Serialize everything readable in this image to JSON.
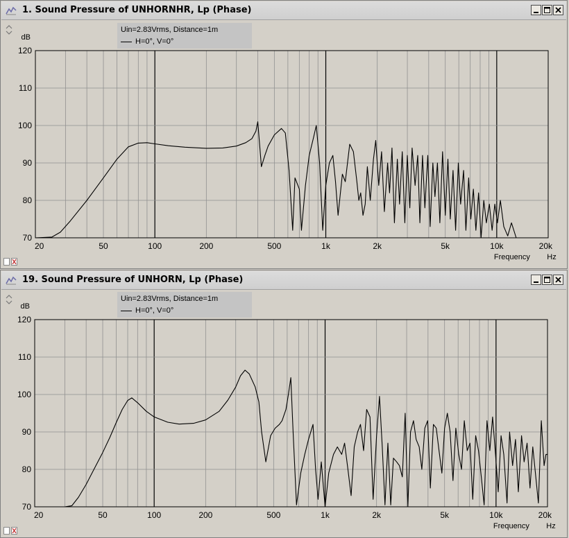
{
  "windows": [
    {
      "title": "1. Sound Pressure of UNHORNHR, Lp (Phase)",
      "legend": {
        "line1": "Uin=2.83Vrms, Distance=1m",
        "line2": "H=0°, V=0°"
      },
      "y_unit": "dB",
      "x_label": "Frequency",
      "x_unit": "Hz",
      "minimize_label": "_",
      "maximize_label": "□",
      "close_label": "✕"
    },
    {
      "title": "19. Sound Pressure of UNHORN, Lp (Phase)",
      "legend": {
        "line1": "Uin=2.83Vrms, Distance=1m",
        "line2": "H=0°, V=0°"
      },
      "y_unit": "dB",
      "x_label": "Frequency",
      "x_unit": "Hz",
      "minimize_label": "_",
      "maximize_label": "□",
      "close_label": "✕"
    }
  ],
  "chart_data": [
    {
      "type": "line",
      "title": "1. Sound Pressure of UNHORNHR, Lp (Phase)",
      "xlabel": "Frequency",
      "xunit": "Hz",
      "ylabel": "dB",
      "xscale": "log",
      "xlim": [
        20,
        20000
      ],
      "ylim": [
        70,
        120
      ],
      "y_ticks": [
        70,
        80,
        90,
        100,
        110,
        120
      ],
      "x_ticks": [
        "20",
        "50",
        "100",
        "200",
        "500",
        "1k",
        "2k",
        "5k",
        "10k",
        "20k"
      ],
      "grid": true,
      "series": [
        {
          "name": "H=0°, V=0°",
          "points": [
            [
              20,
              70
            ],
            [
              25,
              70.2
            ],
            [
              28,
              71.5
            ],
            [
              32,
              74.5
            ],
            [
              40,
              80
            ],
            [
              50,
              86
            ],
            [
              60,
              91
            ],
            [
              70,
              94.3
            ],
            [
              80,
              95.3
            ],
            [
              90,
              95.4
            ],
            [
              100,
              95.1
            ],
            [
              120,
              94.6
            ],
            [
              150,
              94.2
            ],
            [
              200,
              93.9
            ],
            [
              250,
              94.0
            ],
            [
              300,
              94.5
            ],
            [
              340,
              95.4
            ],
            [
              370,
              96.5
            ],
            [
              390,
              98.5
            ],
            [
              400,
              101
            ],
            [
              410,
              95
            ],
            [
              420,
              89
            ],
            [
              440,
              92
            ],
            [
              460,
              94.5
            ],
            [
              500,
              97.5
            ],
            [
              550,
              99.2
            ],
            [
              580,
              98
            ],
            [
              610,
              88
            ],
            [
              640,
              72
            ],
            [
              660,
              86
            ],
            [
              700,
              83
            ],
            [
              720,
              72
            ],
            [
              760,
              84
            ],
            [
              800,
              92
            ],
            [
              850,
              97
            ],
            [
              880,
              100
            ],
            [
              920,
              90
            ],
            [
              960,
              72
            ],
            [
              1000,
              84
            ],
            [
              1050,
              90
            ],
            [
              1100,
              92
            ],
            [
              1140,
              85
            ],
            [
              1180,
              76
            ],
            [
              1250,
              87
            ],
            [
              1300,
              85
            ],
            [
              1380,
              95
            ],
            [
              1450,
              93
            ],
            [
              1520,
              85
            ],
            [
              1560,
              80
            ],
            [
              1600,
              82
            ],
            [
              1650,
              76
            ],
            [
              1700,
              79
            ],
            [
              1750,
              89
            ],
            [
              1820,
              80
            ],
            [
              1900,
              91
            ],
            [
              1960,
              96
            ],
            [
              2040,
              84
            ],
            [
              2120,
              93
            ],
            [
              2200,
              77
            ],
            [
              2300,
              90
            ],
            [
              2360,
              82
            ],
            [
              2440,
              94
            ],
            [
              2520,
              74
            ],
            [
              2620,
              91
            ],
            [
              2700,
              79
            ],
            [
              2800,
              93
            ],
            [
              2900,
              74
            ],
            [
              3000,
              92
            ],
            [
              3100,
              78
            ],
            [
              3200,
              94
            ],
            [
              3330,
              84
            ],
            [
              3450,
              92
            ],
            [
              3550,
              74
            ],
            [
              3680,
              92
            ],
            [
              3800,
              78
            ],
            [
              3950,
              92
            ],
            [
              4080,
              73
            ],
            [
              4230,
              90
            ],
            [
              4350,
              81
            ],
            [
              4500,
              90
            ],
            [
              4650,
              74
            ],
            [
              4820,
              93
            ],
            [
              5000,
              76
            ],
            [
              5180,
              91
            ],
            [
              5350,
              75
            ],
            [
              5550,
              88
            ],
            [
              5750,
              72
            ],
            [
              5960,
              90
            ],
            [
              6150,
              79
            ],
            [
              6400,
              88
            ],
            [
              6600,
              72
            ],
            [
              6850,
              86
            ],
            [
              7050,
              75
            ],
            [
              7300,
              83
            ],
            [
              7550,
              72
            ],
            [
              7830,
              82
            ],
            [
              8100,
              70
            ],
            [
              8400,
              80
            ],
            [
              8700,
              74
            ],
            [
              9050,
              79
            ],
            [
              9400,
              72
            ],
            [
              9750,
              79
            ],
            [
              10100,
              74
            ],
            [
              10500,
              80
            ],
            [
              11000,
              73
            ],
            [
              11600,
              70.5
            ],
            [
              12200,
              74
            ],
            [
              13000,
              70
            ],
            [
              14000,
              70
            ],
            [
              20000,
              70
            ]
          ]
        }
      ]
    },
    {
      "type": "line",
      "title": "19. Sound Pressure of UNHORN, Lp (Phase)",
      "xlabel": "Frequency",
      "xunit": "Hz",
      "ylabel": "dB",
      "xscale": "log",
      "xlim": [
        20,
        20000
      ],
      "ylim": [
        70,
        120
      ],
      "y_ticks": [
        70,
        80,
        90,
        100,
        110,
        120
      ],
      "x_ticks": [
        "20",
        "50",
        "100",
        "200",
        "500",
        "1k",
        "2k",
        "5k",
        "10k",
        "20k"
      ],
      "grid": true,
      "series": [
        {
          "name": "H=0°, V=0°",
          "points": [
            [
              20,
              70
            ],
            [
              30,
              70
            ],
            [
              33,
              70.3
            ],
            [
              36,
              72.5
            ],
            [
              40,
              76
            ],
            [
              45,
              80.5
            ],
            [
              50,
              84.5
            ],
            [
              55,
              88.5
            ],
            [
              60,
              92.5
            ],
            [
              65,
              96
            ],
            [
              70,
              98.4
            ],
            [
              74,
              99.1
            ],
            [
              80,
              97.8
            ],
            [
              90,
              95.5
            ],
            [
              100,
              94
            ],
            [
              120,
              92.6
            ],
            [
              140,
              92.1
            ],
            [
              170,
              92.3
            ],
            [
              200,
              93.2
            ],
            [
              240,
              95.5
            ],
            [
              270,
              98.5
            ],
            [
              300,
              102
            ],
            [
              320,
              105
            ],
            [
              340,
              106.5
            ],
            [
              360,
              105.5
            ],
            [
              390,
              102
            ],
            [
              410,
              98
            ],
            [
              425,
              90
            ],
            [
              450,
              82
            ],
            [
              480,
              89
            ],
            [
              510,
              91
            ],
            [
              540,
              92
            ],
            [
              560,
              93
            ],
            [
              590,
              96
            ],
            [
              610,
              100
            ],
            [
              630,
              104.5
            ],
            [
              650,
              90
            ],
            [
              680,
              70.5
            ],
            [
              720,
              79
            ],
            [
              760,
              84
            ],
            [
              800,
              88
            ],
            [
              850,
              92
            ],
            [
              880,
              80
            ],
            [
              910,
              72
            ],
            [
              950,
              82
            ],
            [
              1000,
              70
            ],
            [
              1050,
              79
            ],
            [
              1120,
              84
            ],
            [
              1180,
              86
            ],
            [
              1250,
              84
            ],
            [
              1300,
              87
            ],
            [
              1360,
              80
            ],
            [
              1420,
              73
            ],
            [
              1480,
              86
            ],
            [
              1550,
              90
            ],
            [
              1610,
              92
            ],
            [
              1680,
              85
            ],
            [
              1750,
              96
            ],
            [
              1830,
              94
            ],
            [
              1910,
              72
            ],
            [
              2000,
              89
            ],
            [
              2080,
              99.5
            ],
            [
              2160,
              86
            ],
            [
              2240,
              70.5
            ],
            [
              2330,
              87
            ],
            [
              2420,
              70.5
            ],
            [
              2510,
              83
            ],
            [
              2620,
              82
            ],
            [
              2720,
              81
            ],
            [
              2830,
              78
            ],
            [
              2940,
              95
            ],
            [
              3050,
              70
            ],
            [
              3160,
              90
            ],
            [
              3290,
              93
            ],
            [
              3410,
              88
            ],
            [
              3550,
              86
            ],
            [
              3680,
              80
            ],
            [
              3830,
              91
            ],
            [
              3980,
              93
            ],
            [
              4130,
              75
            ],
            [
              4300,
              92
            ],
            [
              4470,
              91
            ],
            [
              4640,
              85
            ],
            [
              4820,
              79
            ],
            [
              5000,
              91
            ],
            [
              5190,
              95
            ],
            [
              5390,
              90
            ],
            [
              5600,
              77
            ],
            [
              5820,
              91
            ],
            [
              6050,
              84
            ],
            [
              6280,
              80
            ],
            [
              6520,
              93
            ],
            [
              6780,
              85
            ],
            [
              7040,
              87
            ],
            [
              7310,
              72
            ],
            [
              7600,
              89
            ],
            [
              7900,
              85
            ],
            [
              8200,
              78
            ],
            [
              8520,
              70.5
            ],
            [
              8850,
              93
            ],
            [
              9200,
              85
            ],
            [
              9550,
              94
            ],
            [
              9930,
              84
            ],
            [
              10300,
              74
            ],
            [
              10700,
              89
            ],
            [
              11100,
              84
            ],
            [
              11600,
              71
            ],
            [
              12000,
              90
            ],
            [
              12500,
              81
            ],
            [
              13000,
              88
            ],
            [
              13500,
              74
            ],
            [
              14100,
              89
            ],
            [
              14600,
              82
            ],
            [
              15200,
              87
            ],
            [
              15800,
              75
            ],
            [
              16400,
              86
            ],
            [
              17000,
              79
            ],
            [
              17700,
              71
            ],
            [
              18400,
              93
            ],
            [
              19100,
              81
            ],
            [
              19600,
              84
            ],
            [
              20000,
              84
            ]
          ]
        }
      ]
    }
  ]
}
